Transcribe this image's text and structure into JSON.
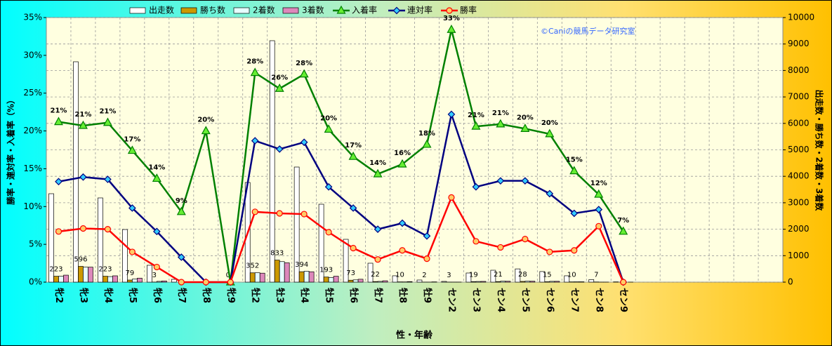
{
  "chart_data": {
    "type": "combo",
    "annotation": "©Caniの競馬データ研究室",
    "xlabel": "性・年齢",
    "ylabel": "勝率・連対率・入着率（%）",
    "y2label": "出走数・勝ち数・2着数・3着数",
    "grid": true,
    "categories": [
      "牝2",
      "牝3",
      "牝4",
      "牝5",
      "牝6",
      "牝7",
      "牝8",
      "牝9",
      "牡2",
      "牡3",
      "牡4",
      "牡5",
      "牡6",
      "牡7",
      "牡8",
      "牡9",
      "セン2",
      "セン3",
      "セン4",
      "セン5",
      "セン6",
      "セン7",
      "セン8",
      "セン9",
      null,
      null,
      null,
      null,
      null,
      null
    ],
    "ylim": [
      0,
      35
    ],
    "yticks": [
      {
        "value": 0,
        "label": "0%"
      },
      {
        "value": 5,
        "label": "5%"
      },
      {
        "value": 10,
        "label": "10%"
      },
      {
        "value": 15,
        "label": "15%"
      },
      {
        "value": 20,
        "label": "20%"
      },
      {
        "value": 25,
        "label": "25%"
      },
      {
        "value": 30,
        "label": "30%"
      },
      {
        "value": 35,
        "label": "35%"
      }
    ],
    "y2lim": [
      0,
      10000
    ],
    "y2ticks": [
      0,
      1000,
      2000,
      3000,
      4000,
      5000,
      6000,
      7000,
      8000,
      9000,
      10000
    ],
    "series": [
      {
        "name": "出走数",
        "type": "bar",
        "axis": "y2",
        "color": "#ffffff",
        "values": [
          3342,
          8329,
          3183,
          1989,
          637,
          106,
          5,
          3,
          3767,
          9125,
          4350,
          2944,
          1618,
          716,
          240,
          80,
          28,
          345,
          450,
          500,
          400,
          240,
          95,
          10,
          null,
          null,
          null,
          null,
          null,
          null
        ]
      },
      {
        "name": "勝ち数",
        "type": "bar",
        "axis": "y2",
        "color": "#cc9900",
        "values": [
          223,
          596,
          223,
          79,
          3,
          0,
          0,
          0,
          352,
          833,
          394,
          193,
          73,
          22,
          10,
          2,
          3,
          19,
          21,
          28,
          15,
          10,
          7,
          0,
          null,
          null,
          null,
          null,
          null,
          null
        ],
        "value_labels": [
          "223",
          "596",
          "223",
          "79",
          "3",
          null,
          null,
          "0",
          "352",
          "833",
          "394",
          "193",
          "73",
          "22",
          "10",
          "2",
          "3",
          "19",
          "21",
          "28",
          "15",
          "10",
          "7",
          null,
          null,
          null,
          null,
          null,
          null,
          null
        ]
      },
      {
        "name": "2着数",
        "type": "bar",
        "axis": "y2",
        "color": "#e6ffff",
        "values": [
          221,
          566,
          210,
          115,
          30,
          3,
          0,
          0,
          354,
          776,
          413,
          177,
          86,
          29,
          9,
          2,
          3,
          25,
          40,
          38,
          31,
          12,
          2,
          0,
          null,
          null,
          null,
          null,
          null,
          null
        ]
      },
      {
        "name": "3着数",
        "type": "bar",
        "axis": "y2",
        "color": "#dd88bb",
        "values": [
          264,
          566,
          239,
          151,
          45,
          6,
          1,
          0,
          339,
          730,
          392,
          224,
          110,
          52,
          19,
          10,
          3,
          28,
          34,
          35,
          32,
          13,
          2,
          1,
          null,
          null,
          null,
          null,
          null,
          null
        ]
      },
      {
        "name": "入着率",
        "type": "line",
        "marker": "triangle",
        "color": "#008000",
        "marker_color": "#66ee33",
        "values": [
          21.2,
          20.7,
          21.1,
          17.4,
          13.7,
          9.3,
          20.0,
          0,
          27.7,
          25.6,
          27.5,
          20.2,
          16.6,
          14.3,
          15.6,
          18.2,
          33.4,
          20.6,
          20.9,
          20.3,
          19.6,
          14.7,
          11.6,
          6.7,
          null,
          null,
          null,
          null,
          null,
          null
        ],
        "value_labels": [
          "21%",
          "21%",
          "21%",
          "17%",
          "14%",
          "9%",
          "20%",
          null,
          "28%",
          "26%",
          "28%",
          "20%",
          "17%",
          "14%",
          "16%",
          "18%",
          "33%",
          "21%",
          "21%",
          "20%",
          "20%",
          "15%",
          "12%",
          "7%",
          null,
          null,
          null,
          null,
          null,
          null
        ]
      },
      {
        "name": "連対率",
        "type": "line",
        "marker": "diamond",
        "color": "#000080",
        "marker_color": "#33ccff",
        "values": [
          13.3,
          13.9,
          13.6,
          9.8,
          6.7,
          3.3,
          0,
          0,
          18.7,
          17.6,
          18.5,
          12.6,
          9.8,
          7.0,
          7.8,
          6.1,
          22.2,
          12.6,
          13.4,
          13.4,
          11.7,
          9.1,
          9.6,
          0,
          null,
          null,
          null,
          null,
          null,
          null
        ]
      },
      {
        "name": "勝率",
        "type": "line",
        "marker": "circle",
        "color": "#ff0000",
        "marker_color": "#ffcc66",
        "values": [
          6.7,
          7.1,
          7.0,
          4.0,
          2.0,
          0,
          0,
          0,
          9.3,
          9.1,
          9.0,
          6.6,
          4.5,
          3.0,
          4.2,
          3.1,
          11.2,
          5.4,
          4.6,
          5.7,
          4.0,
          4.2,
          7.4,
          0,
          null,
          null,
          null,
          null,
          null,
          null
        ]
      }
    ]
  }
}
